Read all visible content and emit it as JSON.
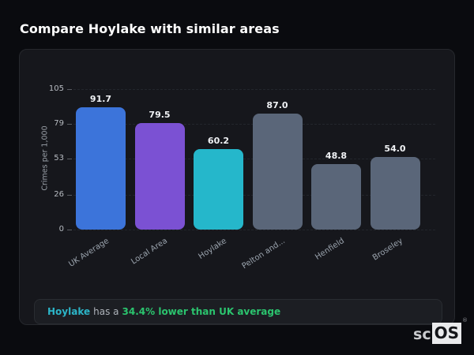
{
  "page": {
    "title": "Compare Hoylake with similar areas"
  },
  "chart_data": {
    "type": "bar",
    "categories": [
      "UK Average",
      "Local Area",
      "Hoylake",
      "Pelton and...",
      "Henfield",
      "Broseley"
    ],
    "values": [
      91.7,
      79.5,
      60.2,
      87.0,
      48.8,
      54.0
    ],
    "value_labels": [
      "91.7",
      "79.5",
      "60.2",
      "87.0",
      "48.8",
      "54.0"
    ],
    "bar_colors": [
      "#3c74da",
      "#7b51d3",
      "#25b7cb",
      "#5a6679",
      "#5a6679",
      "#5a6679"
    ],
    "title": "",
    "xlabel": "",
    "ylabel": "Crimes per 1,000",
    "yticks": [
      0,
      26,
      53,
      79,
      105
    ],
    "ylim": [
      0,
      105
    ],
    "grid": "dashed-horizontal",
    "legend": "none"
  },
  "note": {
    "area": "Hoylake",
    "middle": "has a",
    "highlight": "34.4% lower than UK average",
    "area_color": "#2cb5c8",
    "highlight_color": "#2bc46e"
  },
  "logo": {
    "prefix": "sc",
    "suffix": "OS",
    "registered": "®"
  }
}
